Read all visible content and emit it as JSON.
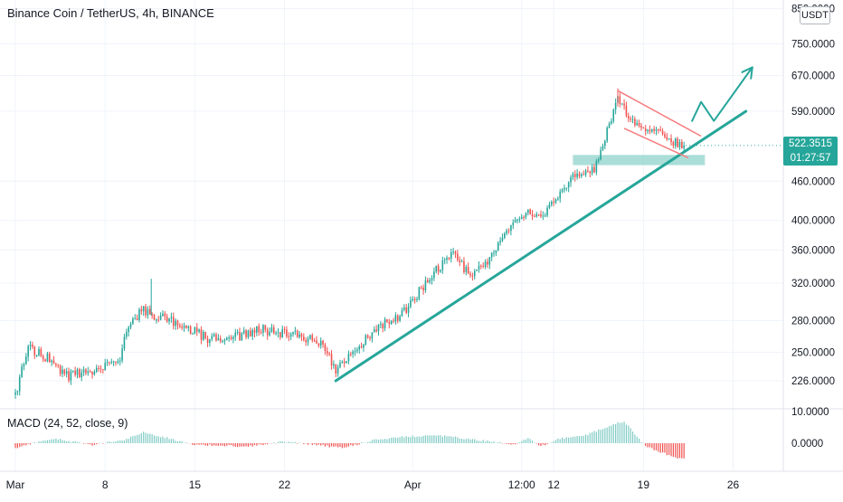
{
  "header": {
    "symbol_title": "Binance Coin / TetherUS, 4h, BINANCE",
    "currency_button": "USDT"
  },
  "price_badge": {
    "price": "522.3515",
    "countdown": "01:27:57"
  },
  "indicator": {
    "label": "MACD (24, 52, close, 9)"
  },
  "colors": {
    "up": "#26a69a",
    "down": "#ef5350",
    "trendline": "#26a69a",
    "pennant": "#f77c80",
    "support_zone": "#8fd3cb",
    "projection": "#26a69a",
    "hist_up": "#80cbc4",
    "hist_down": "#ef5350"
  },
  "chart_data": [
    {
      "type": "candlestick",
      "title": "Binance Coin / TetherUS, 4h, BINANCE",
      "y_scale": "log",
      "ylim": [
        200,
        880
      ],
      "yticks": [
        "226.0000",
        "250.0000",
        "280.0000",
        "320.0000",
        "360.0000",
        "400.0000",
        "460.0000",
        "590.0000",
        "670.0000",
        "750.0000",
        "850.0000"
      ],
      "x_tick_labels": [
        "Mar",
        "8",
        "15",
        "22",
        "Apr",
        "12:00",
        "12",
        "19",
        "26"
      ],
      "last_price": 522.3515,
      "price_path": [
        {
          "day": 0,
          "price": 215
        },
        {
          "day": 1,
          "price": 255
        },
        {
          "day": 2.5,
          "price": 245
        },
        {
          "day": 4,
          "price": 230
        },
        {
          "day": 6,
          "price": 234
        },
        {
          "day": 8,
          "price": 240
        },
        {
          "day": 9,
          "price": 280
        },
        {
          "day": 10,
          "price": 290
        },
        {
          "day": 11.5,
          "price": 282
        },
        {
          "day": 13,
          "price": 277
        },
        {
          "day": 15,
          "price": 262
        },
        {
          "day": 17,
          "price": 263
        },
        {
          "day": 19,
          "price": 272
        },
        {
          "day": 21,
          "price": 268
        },
        {
          "day": 23,
          "price": 263
        },
        {
          "day": 24,
          "price": 258
        },
        {
          "day": 25,
          "price": 235
        },
        {
          "day": 26.5,
          "price": 250
        },
        {
          "day": 28,
          "price": 272
        },
        {
          "day": 30,
          "price": 285
        },
        {
          "day": 31,
          "price": 300
        },
        {
          "day": 32.5,
          "price": 330
        },
        {
          "day": 34,
          "price": 355
        },
        {
          "day": 35.5,
          "price": 330
        },
        {
          "day": 37,
          "price": 350
        },
        {
          "day": 38.5,
          "price": 390
        },
        {
          "day": 40,
          "price": 410
        },
        {
          "day": 41,
          "price": 405
        },
        {
          "day": 42,
          "price": 430
        },
        {
          "day": 43.5,
          "price": 470
        },
        {
          "day": 44.5,
          "price": 475
        },
        {
          "day": 45.3,
          "price": 485
        },
        {
          "day": 46.3,
          "price": 560
        },
        {
          "day": 47,
          "price": 620
        },
        {
          "day": 48,
          "price": 570
        },
        {
          "day": 49,
          "price": 560
        },
        {
          "day": 50,
          "price": 555
        },
        {
          "day": 51,
          "price": 540
        },
        {
          "day": 51.7,
          "price": 520
        },
        {
          "day": 52.3,
          "price": 522.3515
        }
      ],
      "annotations": {
        "ascending_trendline": [
          {
            "day": 25,
            "price": 226
          },
          {
            "day": 57,
            "price": 590
          }
        ],
        "pennant_upper": [
          {
            "day": 47,
            "price": 635
          },
          {
            "day": 53.5,
            "price": 540
          }
        ],
        "pennant_lower": [
          {
            "day": 47.5,
            "price": 555
          },
          {
            "day": 52.5,
            "price": 500
          }
        ],
        "support_zone": {
          "day_from": 43.5,
          "day_to": 53.8,
          "price_low": 487,
          "price_high": 505
        },
        "projection_arrow": [
          {
            "day": 52.8,
            "price": 570
          },
          {
            "day": 53.5,
            "price": 610
          },
          {
            "day": 54.5,
            "price": 570
          },
          {
            "day": 57.5,
            "price": 690
          }
        ]
      }
    },
    {
      "type": "bar",
      "title": "MACD (24, 52, close, 9)",
      "ylim": [
        -10,
        10
      ],
      "yticks": [
        "10.0000",
        "0.0000"
      ],
      "histogram_profile": [
        {
          "day": 0,
          "value": -1.5
        },
        {
          "day": 3,
          "value": 1.5
        },
        {
          "day": 6,
          "value": -0.5
        },
        {
          "day": 8.5,
          "value": 1.0
        },
        {
          "day": 10,
          "value": 3.5
        },
        {
          "day": 12,
          "value": 1.5
        },
        {
          "day": 14,
          "value": -0.5
        },
        {
          "day": 18,
          "value": -1.0
        },
        {
          "day": 21,
          "value": 0.5
        },
        {
          "day": 24,
          "value": -0.8
        },
        {
          "day": 25.5,
          "value": -1.5
        },
        {
          "day": 28,
          "value": 1.0
        },
        {
          "day": 30,
          "value": 2.0
        },
        {
          "day": 33,
          "value": 2.5
        },
        {
          "day": 35,
          "value": 1.5
        },
        {
          "day": 37,
          "value": 0.5
        },
        {
          "day": 39,
          "value": -0.5
        },
        {
          "day": 40,
          "value": 1.5
        },
        {
          "day": 41,
          "value": -1.0
        },
        {
          "day": 42.5,
          "value": 1.5
        },
        {
          "day": 44.5,
          "value": 2.5
        },
        {
          "day": 46,
          "value": 5.0
        },
        {
          "day": 47.5,
          "value": 7.0
        },
        {
          "day": 48.5,
          "value": 2.0
        },
        {
          "day": 49.2,
          "value": -1.0
        },
        {
          "day": 50.5,
          "value": -3.0
        },
        {
          "day": 51.7,
          "value": -5.0
        },
        {
          "day": 52.4,
          "value": -4.5
        }
      ]
    }
  ]
}
